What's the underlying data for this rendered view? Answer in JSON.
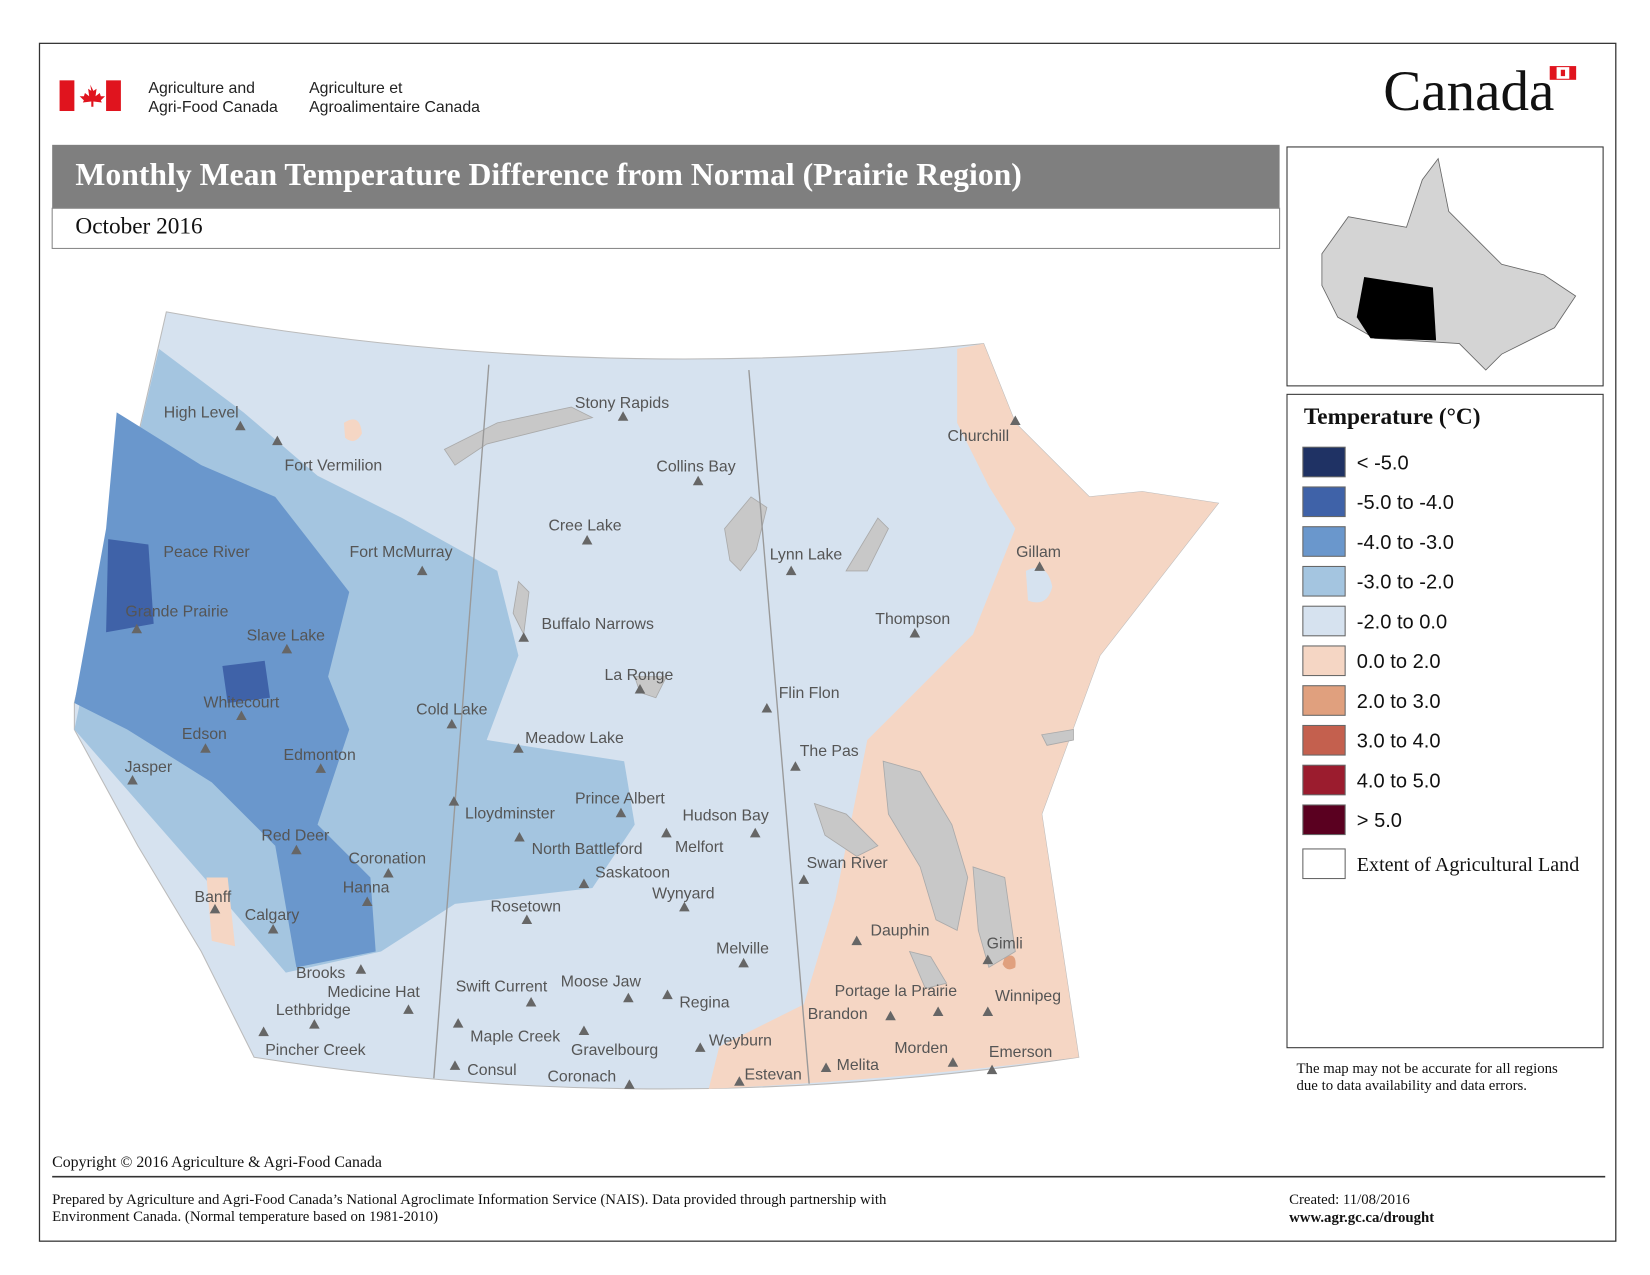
{
  "header": {
    "dept_en": [
      "Agriculture and",
      "Agri-Food Canada"
    ],
    "dept_fr": [
      "Agriculture et",
      "Agroalimentaire Canada"
    ],
    "wordmark": "Canada"
  },
  "title": "Monthly Mean Temperature Difference from Normal (Prairie Region)",
  "subtitle": "October 2016",
  "legend": {
    "title": "Temperature (°C)",
    "items": [
      {
        "label": "< -5.0",
        "color": "#1f3264"
      },
      {
        "label": "-5.0 to -4.0",
        "color": "#3f62a8"
      },
      {
        "label": "-4.0 to -3.0",
        "color": "#6a97cc"
      },
      {
        "label": "-3.0 to -2.0",
        "color": "#a4c5e0"
      },
      {
        "label": "-2.0 to 0.0",
        "color": "#d6e2ef"
      },
      {
        "label": "0.0 to 2.0",
        "color": "#f5d6c4"
      },
      {
        "label": "2.0 to 3.0",
        "color": "#e0a07e"
      },
      {
        "label": "3.0 to 4.0",
        "color": "#c4604e"
      },
      {
        "label": "4.0 to 5.0",
        "color": "#9b1c2e"
      },
      {
        "label": "> 5.0",
        "color": "#5a0020"
      },
      {
        "label": "Extent of Agricultural Land",
        "color": "#ffffff"
      }
    ]
  },
  "cities": [
    "High Level",
    "Fort Vermilion",
    "Stony Rapids",
    "Collins Bay",
    "Churchill",
    "Cree Lake",
    "Lynn Lake",
    "Gillam",
    "Peace River",
    "Fort McMurray",
    "Grande Prairie",
    "Buffalo Narrows",
    "Thompson",
    "Slave Lake",
    "La Ronge",
    "Flin Flon",
    "Whitecourt",
    "Cold Lake",
    "Edson",
    "Meadow Lake",
    "Edmonton",
    "The Pas",
    "Jasper",
    "Prince Albert",
    "Lloydminster",
    "Hudson Bay",
    "Red Deer",
    "North Battleford",
    "Melfort",
    "Coronation",
    "Swan River",
    "Saskatoon",
    "Hanna",
    "Wynyard",
    "Banff",
    "Rosetown",
    "Calgary",
    "Dauphin",
    "Gimli",
    "Melville",
    "Brooks",
    "Swift Current",
    "Moose Jaw",
    "Medicine Hat",
    "Portage la Prairie",
    "Winnipeg",
    "Regina",
    "Lethbridge",
    "Brandon",
    "Maple Creek",
    "Gravelbourg",
    "Weyburn",
    "Pincher Creek",
    "Morden",
    "Emerson",
    "Consul",
    "Coronach",
    "Melita",
    "Estevan"
  ],
  "disclaimer": [
    "The map may not be accurate for all regions",
    "due to data availability and data errors."
  ],
  "copyright": "Copyright © 2016 Agriculture & Agri-Food Canada",
  "prepared": [
    "Prepared by Agriculture and Agri-Food Canada’s National Agroclimate Information Service (NAIS).   Data provided through partnership with",
    "Environment Canada. (Normal temperature based on 1981-2010)"
  ],
  "created": "Created: 11/08/2016",
  "url": "www.agr.gc.ca/drought"
}
